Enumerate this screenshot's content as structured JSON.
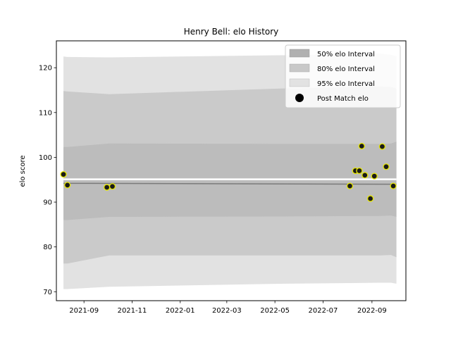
{
  "chart_data": {
    "type": "area",
    "title": "Henry Bell: elo History",
    "xlabel": "",
    "ylabel": "elo score",
    "xlim": [
      "2021-07-28",
      "2022-10-14"
    ],
    "ylim": [
      68,
      126
    ],
    "yticks": [
      70,
      80,
      90,
      100,
      110,
      120
    ],
    "xticks": [
      "2021-09",
      "2021-11",
      "2022-01",
      "2022-03",
      "2022-05",
      "2022-07",
      "2022-09"
    ],
    "grid": false,
    "legend_position": "top-right",
    "legend": [
      {
        "label": "50% elo Interval",
        "kind": "patch",
        "color": "#b0b0b0"
      },
      {
        "label": "80% elo Interval",
        "kind": "patch",
        "color": "#c8c8c8"
      },
      {
        "label": "95% elo Interval",
        "kind": "patch",
        "color": "#e2e2e2"
      },
      {
        "label": "Post Match elo",
        "kind": "marker",
        "color": "#000000"
      }
    ],
    "bands": {
      "x": [
        "2021-08-06",
        "2021-08-11",
        "2021-10-03",
        "2022-05-15",
        "2022-09-11",
        "2022-09-25",
        "2022-10-02"
      ],
      "band95": {
        "lower": [
          70.6,
          70.6,
          71.1,
          71.8,
          72.0,
          72.0,
          71.8
        ],
        "upper": [
          122.5,
          122.4,
          122.3,
          122.8,
          123.2,
          122.9,
          122.6
        ],
        "color": "#e2e2e2"
      },
      "band80": {
        "lower": [
          76.3,
          76.3,
          78.1,
          78.1,
          78.1,
          78.2,
          77.7
        ],
        "upper": [
          114.8,
          114.7,
          114.1,
          115.4,
          115.8,
          115.7,
          115.4
        ],
        "color": "#cacaca"
      },
      "band50": {
        "lower": [
          86.0,
          86.0,
          86.7,
          86.8,
          86.9,
          87.0,
          86.7
        ],
        "upper": [
          102.3,
          102.3,
          103.1,
          103.0,
          103.0,
          103.1,
          103.5
        ],
        "color": "#bcbcbc"
      }
    },
    "mean_line": {
      "x": [
        "2021-08-06",
        "2022-10-02"
      ],
      "y": [
        94.2,
        94.0
      ],
      "color": "#7a7a7a"
    },
    "highlight_line": {
      "x": [
        "2021-08-06",
        "2022-10-02"
      ],
      "y": [
        95.1,
        95.1
      ],
      "color": "#ffffff"
    },
    "series": [
      {
        "name": "Post Match elo",
        "marker_color": "#1a1a1a",
        "edge_color": "#e8e800",
        "x": [
          "2021-08-06",
          "2021-08-11",
          "2021-09-30",
          "2021-10-07",
          "2022-08-04",
          "2022-08-11",
          "2022-08-16",
          "2022-08-19",
          "2022-08-23",
          "2022-08-30",
          "2022-09-04",
          "2022-09-14",
          "2022-09-19",
          "2022-09-28"
        ],
        "y": [
          96.2,
          93.8,
          93.3,
          93.5,
          93.6,
          97.0,
          97.0,
          102.5,
          96.0,
          90.8,
          95.8,
          102.4,
          97.9,
          93.6
        ]
      }
    ]
  }
}
